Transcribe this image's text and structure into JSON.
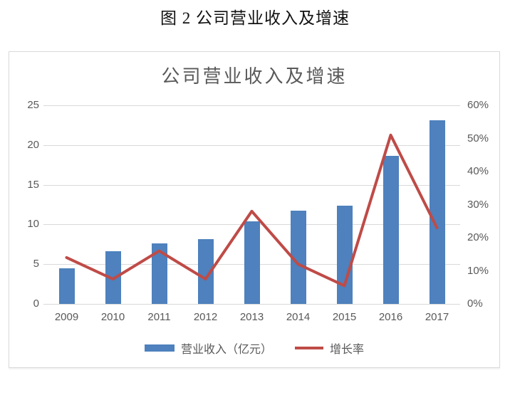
{
  "document": {
    "caption": "图 2 公司营业收入及增速"
  },
  "chart": {
    "title": "公司营业收入及增速",
    "legend": [
      {
        "label": "营业收入（亿元）",
        "marker": "bar-swatch"
      },
      {
        "label": "增长率",
        "marker": "line-swatch"
      }
    ],
    "colors": {
      "bar": "#4e81bd",
      "line": "#bf4b47",
      "grid": "#d9d9d9",
      "text": "#595959"
    }
  },
  "chart_data": {
    "type": "bar",
    "subtype": "combo-bar-line",
    "title": "公司营业收入及增速",
    "categories": [
      "2009",
      "2010",
      "2011",
      "2012",
      "2013",
      "2014",
      "2015",
      "2016",
      "2017"
    ],
    "series": [
      {
        "name": "营业收入（亿元）",
        "type": "bar",
        "axis": "left",
        "values": [
          4.5,
          6.6,
          7.6,
          8.2,
          10.4,
          11.7,
          12.4,
          18.6,
          23.1
        ]
      },
      {
        "name": "增长率",
        "type": "line",
        "axis": "right",
        "unit": "%",
        "values": [
          14,
          7.5,
          16,
          7.5,
          28,
          12,
          5.5,
          51,
          23
        ]
      }
    ],
    "left_axis": {
      "min": 0,
      "max": 25,
      "tick_labels": [
        "25",
        "20",
        "15",
        "10",
        "5",
        "0"
      ]
    },
    "right_axis": {
      "min": 0,
      "max": 60,
      "tick_labels": [
        "60%",
        "50%",
        "40%",
        "30%",
        "20%",
        "10%",
        "0%"
      ]
    },
    "grid": true,
    "legend_position": "bottom",
    "xlabel": "",
    "ylabel_left": "",
    "ylabel_right": ""
  }
}
